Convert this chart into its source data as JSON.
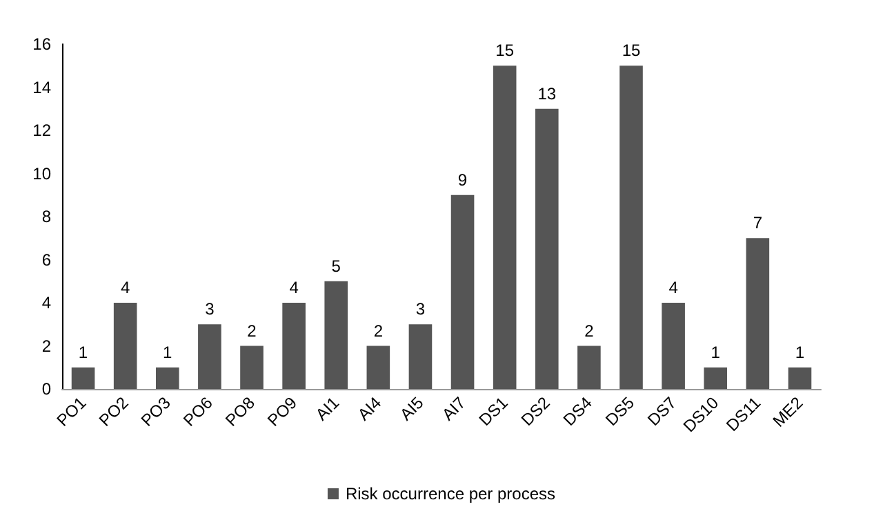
{
  "chart_data": {
    "type": "bar",
    "categories": [
      "PO1",
      "PO2",
      "PO3",
      "PO6",
      "PO8",
      "PO9",
      "AI1",
      "AI4",
      "AI5",
      "AI7",
      "DS1",
      "DS2",
      "DS4",
      "DS5",
      "DS7",
      "DS10",
      "DS11",
      "ME2"
    ],
    "series": [
      {
        "name": "Risk occurrence per process",
        "color": "#555555",
        "values": [
          1,
          4,
          1,
          3,
          2,
          4,
          5,
          2,
          3,
          9,
          15,
          13,
          2,
          15,
          4,
          1,
          7,
          1
        ]
      }
    ],
    "ylim": [
      0,
      16
    ],
    "yticks": [
      0,
      2,
      4,
      6,
      8,
      10,
      12,
      14,
      16
    ],
    "grid": false,
    "legend": "bottom",
    "data_labels": true
  }
}
